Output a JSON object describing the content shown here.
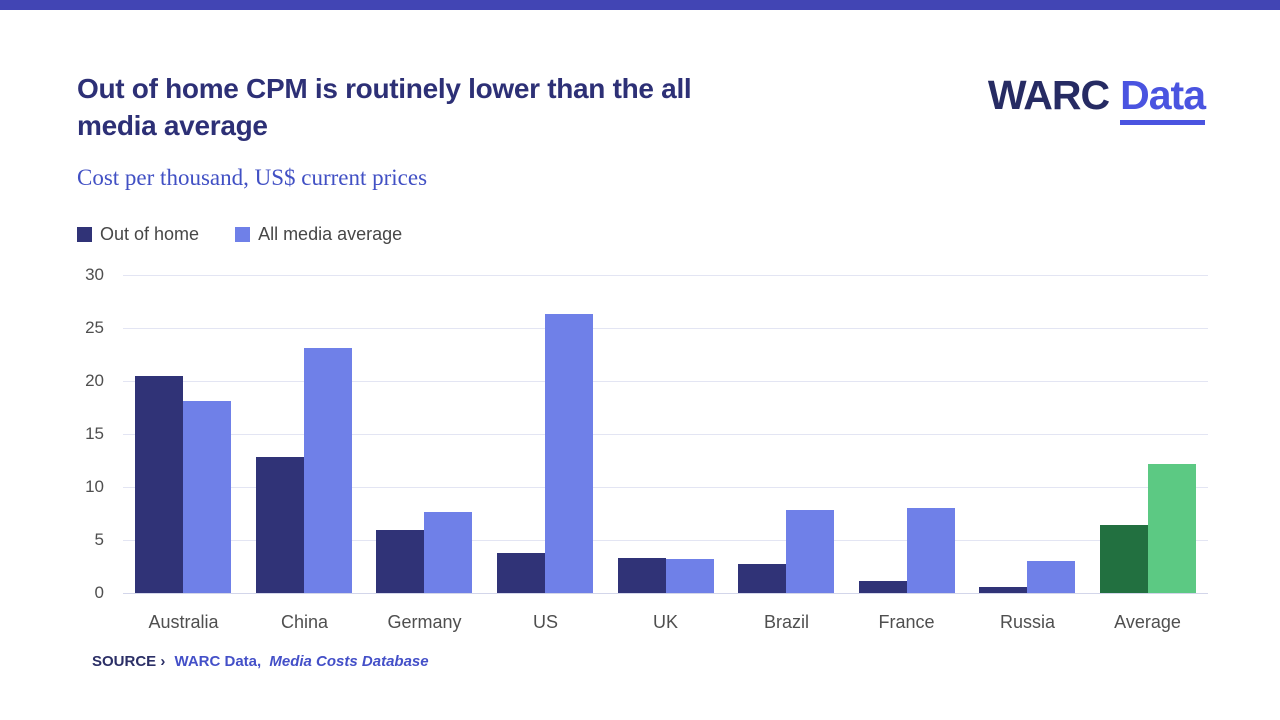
{
  "page": {
    "top_strip_color": "#4245b4"
  },
  "header": {
    "title": "Out of home CPM is routinely lower than the all media average",
    "title_lines": [
      "Out of home CPM is routinely lower than the all",
      "media average"
    ],
    "logo_warc": "WARC",
    "logo_data": "Data",
    "subtitle": "Cost per thousand, US$ current prices"
  },
  "legend": [
    {
      "label": "Out of home",
      "color": "#303377"
    },
    {
      "label": "All media average",
      "color": "#6f80e8"
    }
  ],
  "chart_data": {
    "type": "bar",
    "title": "Out of home CPM is routinely lower than the all media average",
    "subtitle": "Cost per thousand, US$ current prices",
    "categories": [
      "Australia",
      "China",
      "Germany",
      "US",
      "UK",
      "Brazil",
      "France",
      "Russia",
      "Average"
    ],
    "series": [
      {
        "name": "Out of home",
        "values": [
          20.5,
          12.8,
          5.9,
          3.8,
          3.3,
          2.7,
          1.1,
          0.6,
          6.4
        ],
        "color": "#303377",
        "highlight_color": "#227040"
      },
      {
        "name": "All media average",
        "values": [
          18.1,
          23.1,
          7.6,
          26.3,
          3.2,
          7.8,
          8.0,
          3.0,
          12.2
        ],
        "color": "#6f80e8",
        "highlight_color": "#5cc983"
      }
    ],
    "highlight_category": "Average",
    "ylabel": "",
    "xlabel": "",
    "ylim": [
      0,
      30
    ],
    "ytick_interval": 5,
    "grid": true,
    "legend_position": "top-left"
  },
  "source": {
    "prefix": "SOURCE ›",
    "link": "WARC Data,",
    "italic": "Media Costs Database"
  }
}
